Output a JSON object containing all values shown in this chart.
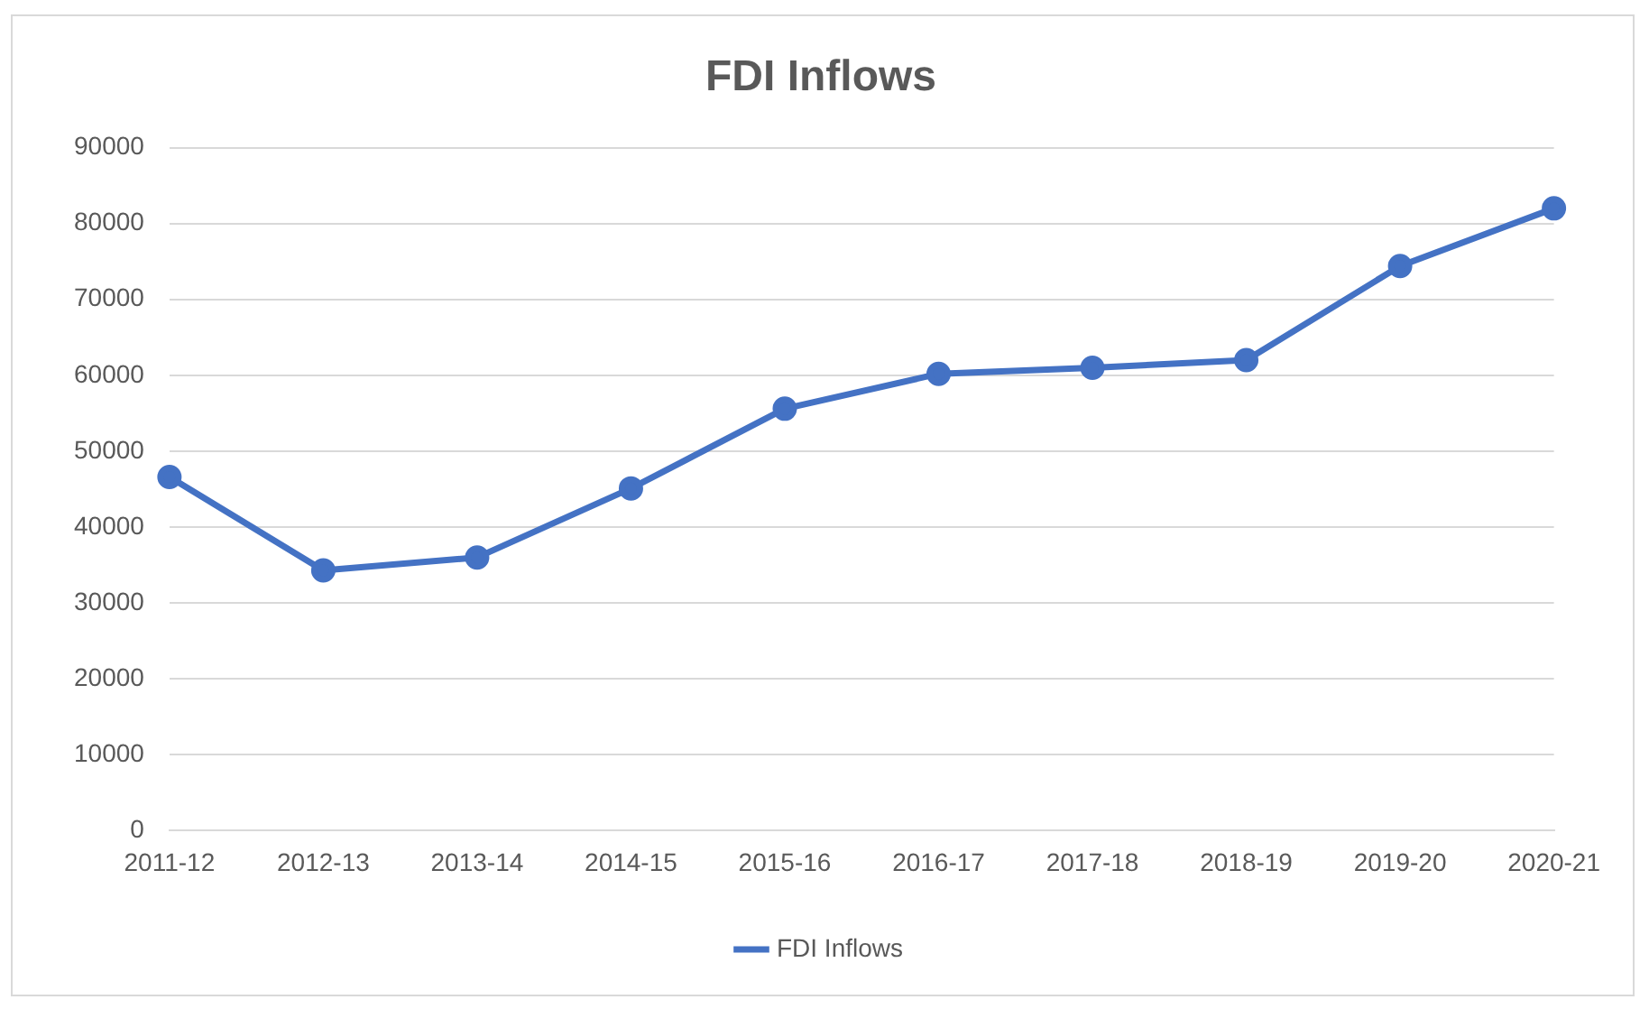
{
  "chart_data": {
    "type": "line",
    "title": "FDI Inflows",
    "categories": [
      "2011-12",
      "2012-13",
      "2013-14",
      "2014-15",
      "2015-16",
      "2016-17",
      "2017-18",
      "2018-19",
      "2019-20",
      "2020-21"
    ],
    "series": [
      {
        "name": "FDI Inflows",
        "color": "#4472c4",
        "values": [
          46600,
          34300,
          36000,
          45100,
          55600,
          60200,
          61000,
          62000,
          74400,
          82000
        ]
      }
    ],
    "ylim": [
      0,
      90000
    ],
    "yticks": [
      0,
      10000,
      20000,
      30000,
      40000,
      50000,
      60000,
      70000,
      80000,
      90000
    ],
    "grid": "y",
    "legend": "bottom",
    "marker": "circle",
    "line_style": "solid"
  }
}
